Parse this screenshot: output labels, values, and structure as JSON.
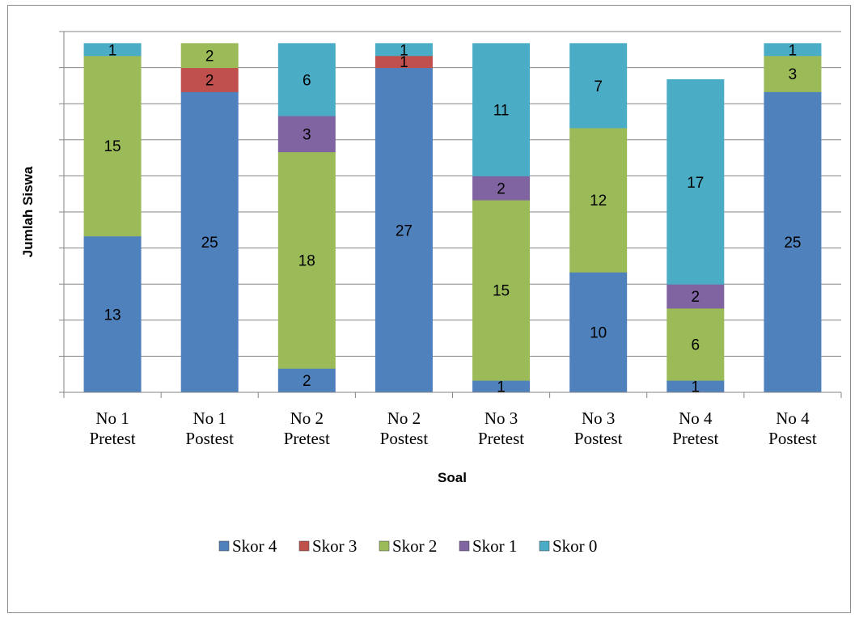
{
  "chart_data": {
    "type": "bar",
    "stacked": true,
    "xlabel": "Soal",
    "ylabel": "Jumlah Siswa",
    "ylim": [
      0,
      30
    ],
    "gridlines": true,
    "legend_position": "bottom",
    "categories": [
      [
        "No 1",
        "Pretest"
      ],
      [
        "No 1",
        "Postest"
      ],
      [
        "No 2",
        "Pretest"
      ],
      [
        "No 2",
        "Postest"
      ],
      [
        "No 3",
        "Pretest"
      ],
      [
        "No 3",
        "Postest"
      ],
      [
        "No 4",
        "Pretest"
      ],
      [
        "No 4",
        "Postest"
      ]
    ],
    "series": [
      {
        "name": "Skor 4",
        "color": "#4f81bd",
        "values": [
          13,
          25,
          2,
          27,
          1,
          10,
          1,
          25
        ]
      },
      {
        "name": "Skor 3",
        "color": "#c0504d",
        "values": [
          0,
          2,
          0,
          1,
          0,
          0,
          0,
          0
        ]
      },
      {
        "name": "Skor 2",
        "color": "#9bbb59",
        "values": [
          15,
          2,
          18,
          0,
          15,
          12,
          6,
          3
        ]
      },
      {
        "name": "Skor 1",
        "color": "#8064a2",
        "values": [
          0,
          0,
          3,
          0,
          2,
          0,
          2,
          0
        ]
      },
      {
        "name": "Skor 0",
        "color": "#4bacc6",
        "values": [
          1,
          0,
          6,
          1,
          11,
          7,
          17,
          1
        ]
      }
    ]
  }
}
